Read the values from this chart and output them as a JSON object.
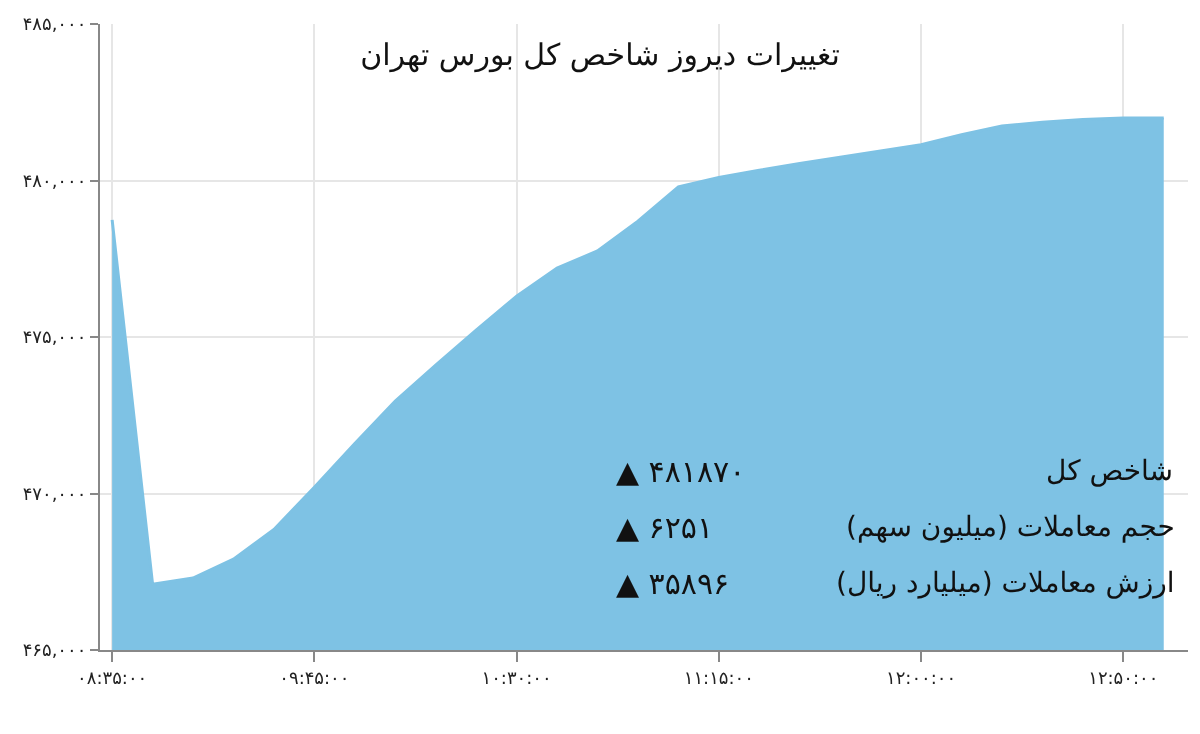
{
  "chart_data": {
    "type": "area",
    "title": "تغییرات دیروز شاخص کل بورس تهران",
    "categories": [
      "۰۸:۳۵:۰۰",
      null,
      null,
      null,
      null,
      "۰۹:۴۵:۰۰",
      null,
      null,
      null,
      null,
      "۱۰:۳۰:۰۰",
      null,
      null,
      null,
      null,
      "۱۱:۱۵:۰۰",
      null,
      null,
      null,
      null,
      "۱۲:۰۰:۰۰",
      null,
      null,
      null,
      null,
      "۱۲:۵۰:۰۰",
      null
    ],
    "values": [
      478740,
      467100,
      467300,
      467900,
      468850,
      470200,
      471600,
      472950,
      474100,
      475220,
      476300,
      477200,
      477750,
      478700,
      479800,
      480100,
      480330,
      480540,
      480740,
      480940,
      481140,
      481460,
      481740,
      481860,
      481950,
      482000,
      482000
    ],
    "color": "#7ec2e4",
    "ylim": [
      465000,
      485000
    ],
    "yticks": [
      {
        "value": 465000,
        "label": "۴۶۵,۰۰۰"
      },
      {
        "value": 470000,
        "label": "۴۷۰,۰۰۰"
      },
      {
        "value": 475000,
        "label": "۴۷۵,۰۰۰"
      },
      {
        "value": 480000,
        "label": "۴۸۰,۰۰۰"
      },
      {
        "value": 485000,
        "label": "۴۸۵,۰۰۰"
      }
    ],
    "grid": true,
    "annotations": [
      "شاخص کل",
      "حجم معاملات (میلیون سهم)",
      "ارزش معاملات (میلیارد ریال)",
      "▲ ۴۸۱۸۷۰",
      "▲ ۶۲۵۱",
      "▲ ۳۵۸۹۶"
    ]
  }
}
